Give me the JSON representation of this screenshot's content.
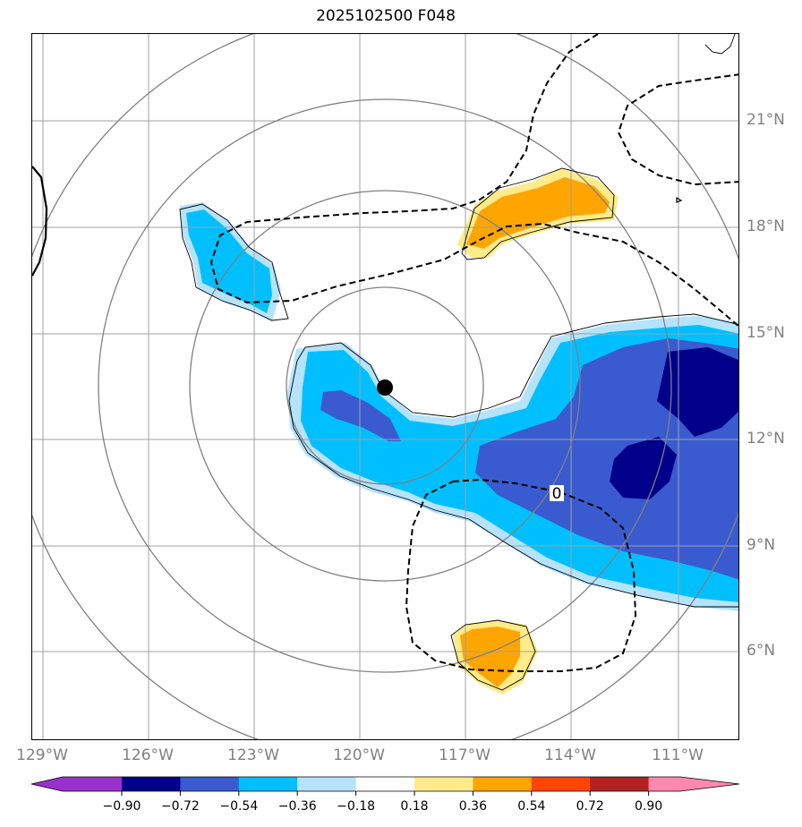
{
  "title": "2025102500 F048",
  "map": {
    "lat_labels": [
      "21°N",
      "18°N",
      "15°N",
      "12°N",
      "9°N",
      "6°N"
    ],
    "lon_labels": [
      "129°W",
      "126°W",
      "123°W",
      "120°W",
      "117°W",
      "114°W",
      "111°W"
    ],
    "contour_label": "0",
    "colors": {
      "gridline": "#a0a0a0",
      "range_ring": "#808080",
      "coastline": "#000000",
      "storm_center": "#000000"
    },
    "storm_center_icon": "storm-center-dot-icon"
  },
  "colorbar": {
    "tick_labels": [
      "−0.90",
      "−0.72",
      "−0.54",
      "−0.36",
      "−0.18",
      "0.18",
      "0.36",
      "0.54",
      "0.72",
      "0.90"
    ],
    "colors": [
      "#9932cc",
      "#00008b",
      "#3a5bd0",
      "#00bfff",
      "#b5e3fc",
      "#ffffff",
      "#ffeb8a",
      "#ffa500",
      "#ff4500",
      "#b22222",
      "#ff88b0"
    ]
  }
}
